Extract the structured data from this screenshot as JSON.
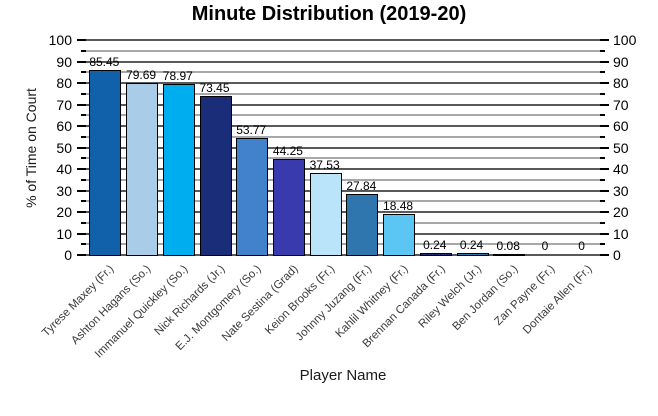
{
  "page": {
    "background": "#ffffff"
  },
  "chart_data": {
    "type": "bar",
    "title": "Minute Distribution (2019-20)",
    "xlabel": "Player Name",
    "ylabel": "% of Time on Court",
    "ylim": [
      0,
      100
    ],
    "ytick_major_step": 10,
    "ytick_minor_step": 5,
    "grid": true,
    "legend_position": "none",
    "dual_y_axis_labels": true,
    "categories": [
      "Tyrese Maxey (Fr.)",
      "Ashton Hagans (So.)",
      "Immanuel Quickley (So.)",
      "Nick Richards (Jr.)",
      "E.J. Montgomery (So.)",
      "Nate Sestina (Grad)",
      "Keion Brooks (Fr.)",
      "Johnny Juzang (Fr.)",
      "Kahlil Whitney (Fr.)",
      "Brennan Canada (Fr.)",
      "Riley Welch (Jr.)",
      "Ben Jordan (So.)",
      "Zan Payne (Fr.)",
      "Dontaie Allen (Fr.)"
    ],
    "values": [
      85.45,
      79.69,
      78.97,
      73.45,
      53.77,
      44.25,
      37.53,
      27.84,
      18.48,
      0.24,
      0.24,
      0.08,
      0,
      0
    ],
    "value_labels": [
      "85.45",
      "79.69",
      "78.97",
      "73.45",
      "53.77",
      "44.25",
      "37.53",
      "27.84",
      "18.48",
      "0.24",
      "0.24",
      "0.08",
      "0",
      "0"
    ],
    "bar_colors": [
      "#1160aa",
      "#a9cce9",
      "#00aeef",
      "#1a2d78",
      "#4282cd",
      "#3a3aaf",
      "#b9e4fa",
      "#2e76ad",
      "#5bc6f3",
      "#1a2d78",
      "#2e76ad",
      "#a9cce9",
      "#c0d6ea",
      "#c0d6ea"
    ],
    "colors": {
      "bar_border": "#000000",
      "grid_major": "#58595b",
      "grid_minor": "#a6a8ab",
      "tick": "#000000",
      "tick_label": "#000000",
      "category_label": "#3a3a3a",
      "axis_title": "#1a1a1a",
      "title": "#000000"
    }
  }
}
